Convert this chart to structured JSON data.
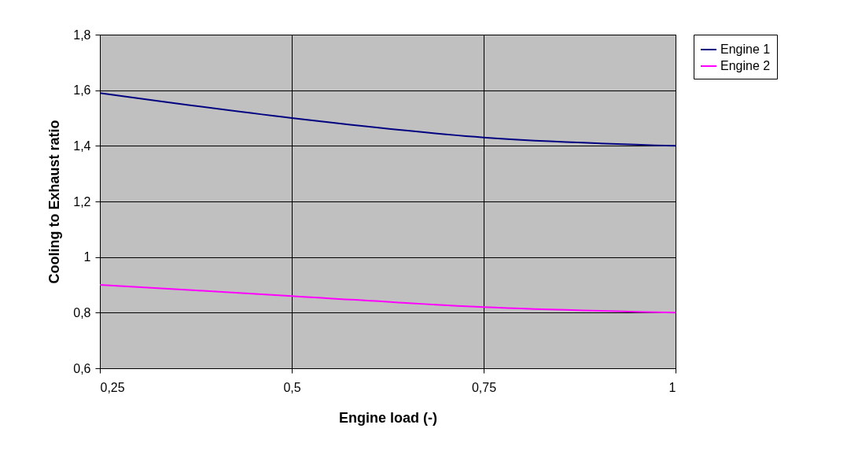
{
  "chart_data": {
    "type": "line",
    "xlabel": "Engine load (-)",
    "ylabel": "Cooling to Exhaust ratio",
    "x": [
      0.25,
      0.5,
      0.75,
      1
    ],
    "series": [
      {
        "name": "Engine 1",
        "color": "#000080",
        "values": [
          1.59,
          1.5,
          1.43,
          1.4
        ]
      },
      {
        "name": "Engine 2",
        "color": "#ff00ff",
        "values": [
          0.9,
          0.86,
          0.82,
          0.8
        ]
      }
    ],
    "xlim": [
      0.25,
      1
    ],
    "xticks": [
      {
        "value": 0.25,
        "label": "0,25"
      },
      {
        "value": 0.5,
        "label": "0,5"
      },
      {
        "value": 0.75,
        "label": "0,75"
      },
      1
    ],
    "ylim": [
      0.6,
      1.8
    ],
    "yticks": [
      {
        "value": 0.6,
        "label": "0,6"
      },
      {
        "value": 0.8,
        "label": "0,8"
      },
      1,
      {
        "value": 1.2,
        "label": "1,2"
      },
      {
        "value": 1.4,
        "label": "1,4"
      },
      {
        "value": 1.6,
        "label": "1,6"
      },
      {
        "value": 1.8,
        "label": "1,8"
      }
    ],
    "grid": true,
    "legend": "right",
    "marker": "none",
    "line_style": "solid"
  }
}
